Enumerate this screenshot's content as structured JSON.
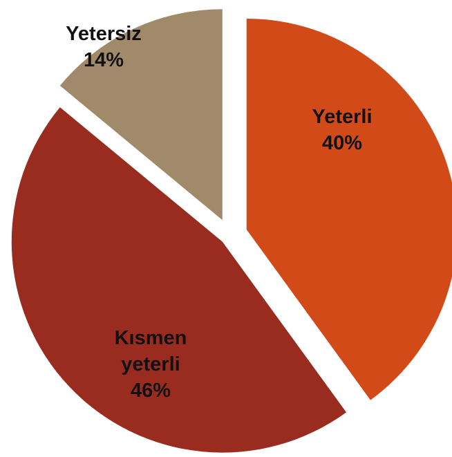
{
  "chart_data": {
    "type": "pie",
    "categories": [
      "Yeterli",
      "Kısmen yeterli",
      "Yetersiz"
    ],
    "values": [
      40,
      46,
      14
    ],
    "value_labels": [
      "40%",
      "46%",
      "14%"
    ],
    "colors": [
      "#d24a17",
      "#9a2b1f",
      "#a08a6a"
    ]
  }
}
